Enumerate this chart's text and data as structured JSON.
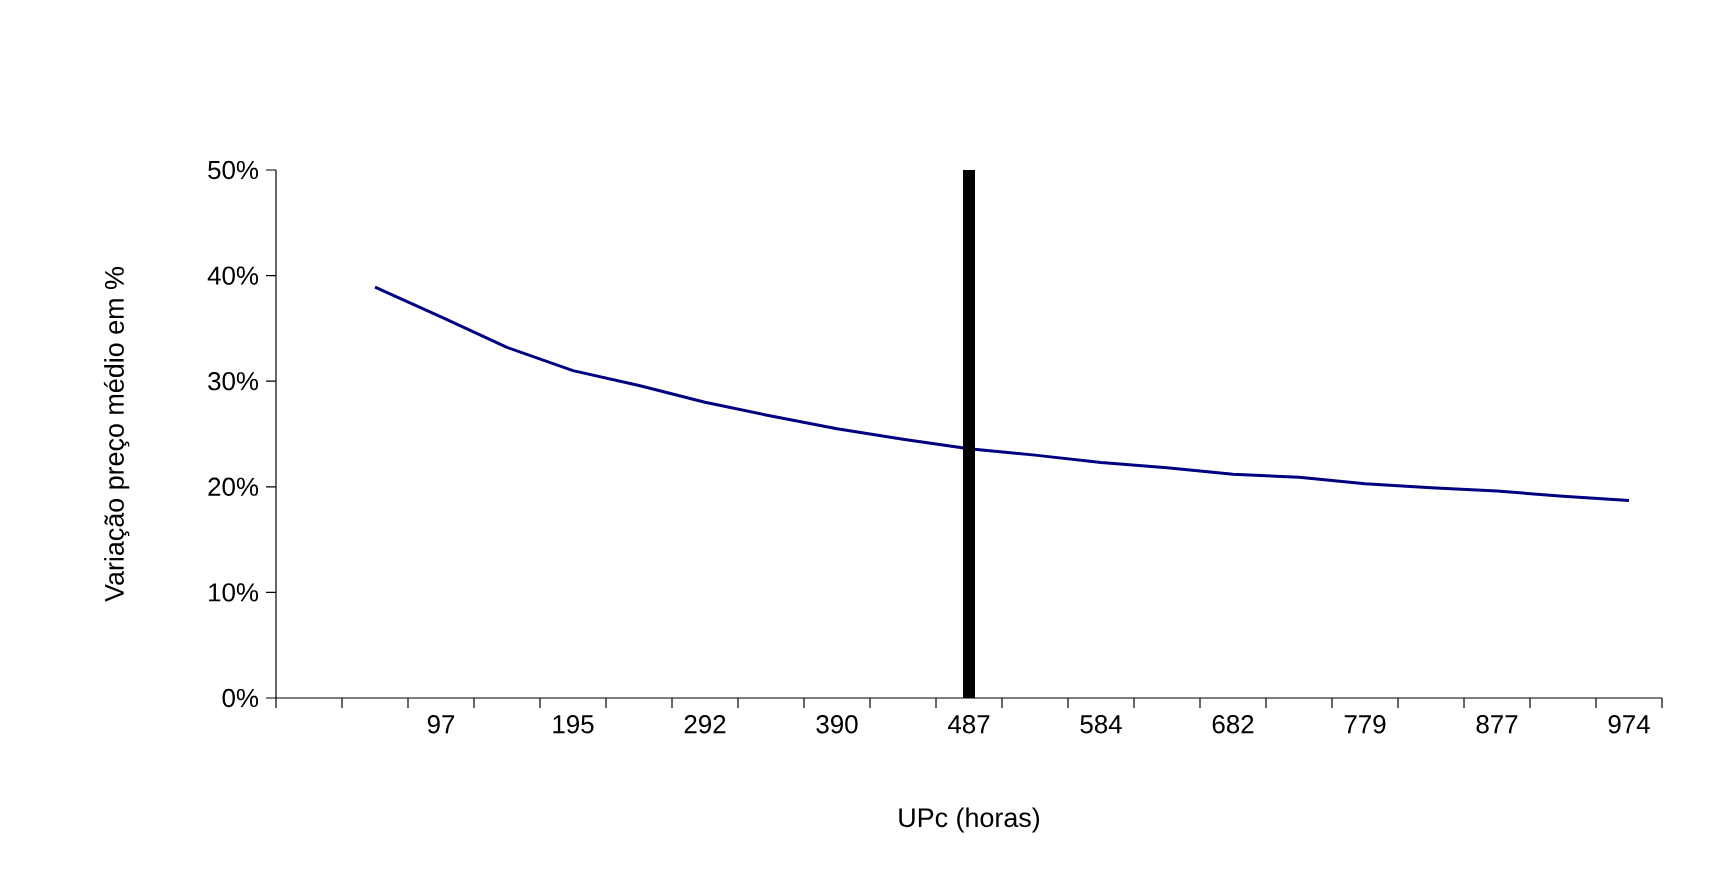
{
  "chart_data": {
    "type": "line",
    "xlabel": "UPc (horas)",
    "ylabel": "Variação preço médio em %",
    "categories": [
      null,
      null,
      "97",
      null,
      "195",
      null,
      "292",
      null,
      "390",
      null,
      "487",
      null,
      "584",
      null,
      "682",
      null,
      "779",
      null,
      "877",
      null,
      "974"
    ],
    "series": [
      {
        "color": "#000080",
        "values": [
          null,
          38.9,
          36.1,
          33.2,
          31.0,
          29.6,
          28.0,
          26.7,
          25.5,
          24.5,
          23.6,
          23.0,
          22.3,
          21.8,
          21.2,
          20.9,
          20.3,
          19.9,
          19.6,
          19.1,
          18.7
        ]
      }
    ],
    "ylim": [
      0,
      50
    ],
    "yticks": [
      {
        "value": 0,
        "label": "0%"
      },
      {
        "value": 10,
        "label": "10%"
      },
      {
        "value": 20,
        "label": "20%"
      },
      {
        "value": 30,
        "label": "30%"
      },
      {
        "value": 40,
        "label": "40%"
      },
      {
        "value": 50,
        "label": "50%"
      }
    ],
    "ref_lines": [
      {
        "axis": "x",
        "value": "487",
        "color": "#000000"
      }
    ],
    "grid": false,
    "marker": "none",
    "line_style": "solid"
  }
}
